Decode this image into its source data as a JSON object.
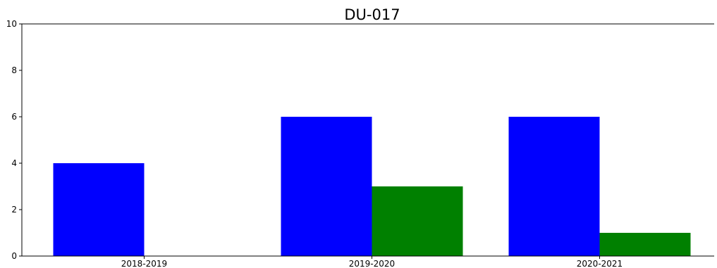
{
  "chart_data": {
    "type": "bar",
    "title": "DU-017",
    "xlabel": "",
    "ylabel": "",
    "categories": [
      "2018-2019",
      "2019-2020",
      "2020-2021"
    ],
    "series": [
      {
        "values": [
          4,
          6,
          6
        ],
        "color": "#0000ff"
      },
      {
        "values": [
          0,
          3,
          1
        ],
        "color": "#008000"
      }
    ],
    "ylim": [
      0,
      10
    ],
    "yticks": [
      0,
      2,
      4,
      6,
      8,
      10
    ],
    "grid": false,
    "legend": "none",
    "spines": {
      "top": true,
      "left": true,
      "right": false,
      "bottom": true
    }
  }
}
